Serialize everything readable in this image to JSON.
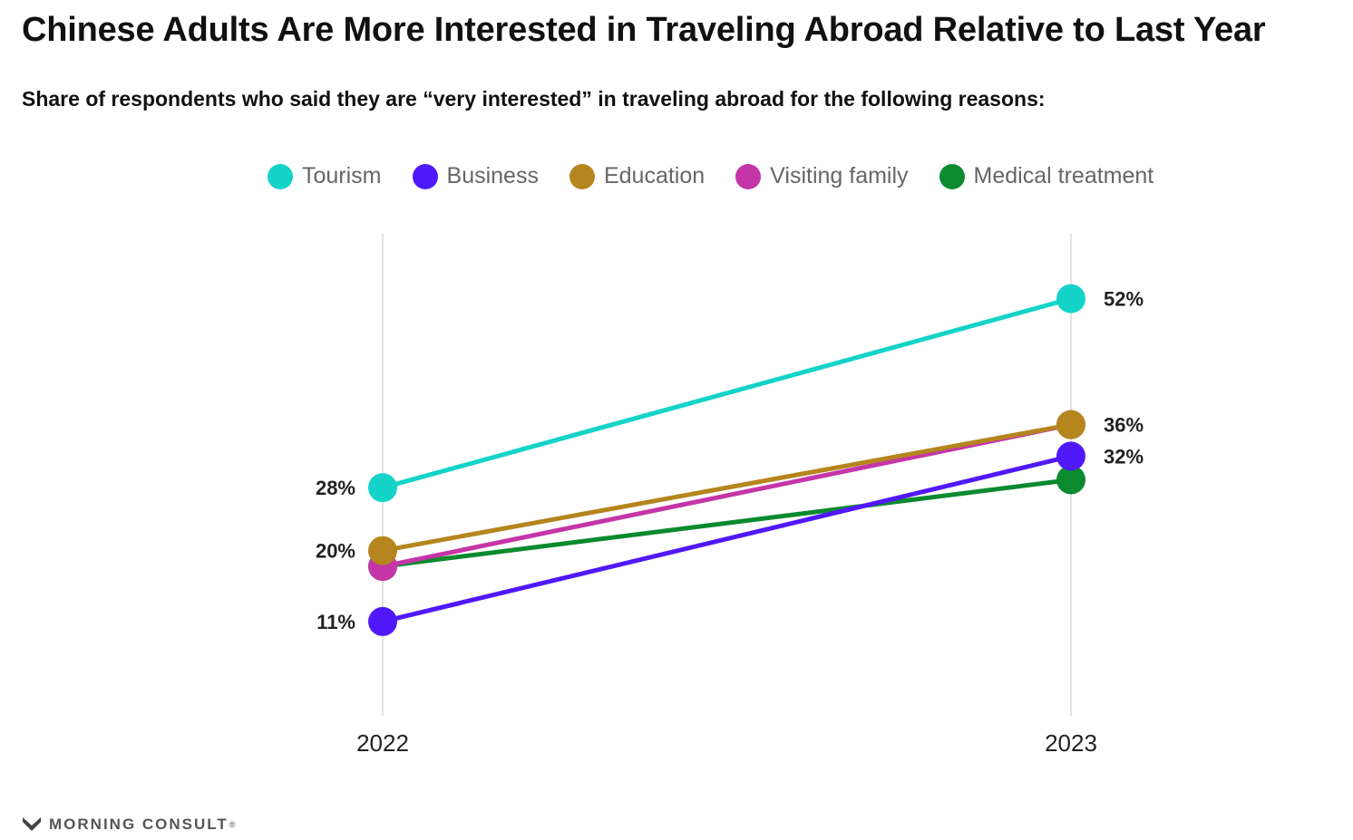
{
  "chart_data": {
    "type": "line",
    "title": "Chinese Adults Are More Interested in Traveling Abroad Relative to Last Year",
    "subtitle": "Share of respondents who said they are “very interested” in traveling abroad for the following reasons:",
    "categories": [
      "2022",
      "2023"
    ],
    "ylim": [
      0,
      60
    ],
    "series": [
      {
        "name": "Tourism",
        "color": "#14d3c8",
        "values": [
          28,
          52
        ],
        "labels": [
          "28%",
          "52%"
        ]
      },
      {
        "name": "Business",
        "color": "#5019fa",
        "values": [
          11,
          32
        ],
        "labels": [
          "11%",
          "32%"
        ]
      },
      {
        "name": "Education",
        "color": "#b5851e",
        "values": [
          20,
          36
        ],
        "labels": [
          "20%",
          ""
        ]
      },
      {
        "name": "Visiting family",
        "color": "#c535a8",
        "values": [
          18,
          36
        ],
        "labels": [
          "",
          "36%"
        ]
      },
      {
        "name": "Medical treatment",
        "color": "#0b8a2e",
        "values": [
          18,
          29
        ],
        "labels": [
          "",
          ""
        ]
      }
    ]
  },
  "source": {
    "name": "MORNING CONSULT",
    "mark": "®"
  }
}
